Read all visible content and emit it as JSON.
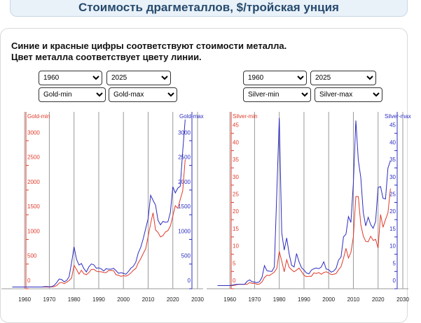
{
  "header": {
    "title": "Стоимость драгметаллов, $/тройская унция"
  },
  "note": [
    "Синие и красные цифры соответствуют стоимости металла.",
    "Цвет металла соответствует цвету линии."
  ],
  "selectors": [
    [
      "1960",
      "2025",
      "Gold-min",
      "Gold-max"
    ],
    [
      "1960",
      "2025",
      "Silver-min",
      "Silver-max"
    ]
  ],
  "chart_data": [
    {
      "type": "line",
      "x": [
        1955,
        1956,
        1957,
        1958,
        1959,
        1960,
        1961,
        1962,
        1963,
        1964,
        1965,
        1966,
        1967,
        1968,
        1969,
        1970,
        1971,
        1972,
        1973,
        1974,
        1975,
        1976,
        1977,
        1978,
        1979,
        1980,
        1981,
        1982,
        1983,
        1984,
        1985,
        1986,
        1987,
        1988,
        1989,
        1990,
        1991,
        1992,
        1993,
        1994,
        1995,
        1996,
        1997,
        1998,
        1999,
        2000,
        2001,
        2002,
        2003,
        2004,
        2005,
        2006,
        2007,
        2008,
        2009,
        2010,
        2011,
        2012,
        2013,
        2014,
        2015,
        2016,
        2017,
        2018,
        2019,
        2020,
        2021,
        2022,
        2023,
        2024,
        2025
      ],
      "series": [
        {
          "name": "Gold-min",
          "color": "#e03a2a",
          "values": [
            35,
            35,
            35,
            35,
            35,
            35,
            35,
            35,
            35,
            35,
            35,
            35,
            35,
            35,
            35,
            35,
            37,
            44,
            64,
            116,
            128,
            104,
            130,
            166,
            216,
            474,
            391,
            297,
            374,
            303,
            285,
            326,
            390,
            395,
            355,
            346,
            344,
            330,
            326,
            370,
            372,
            367,
            283,
            273,
            252,
            263,
            256,
            278,
            320,
            375,
            411,
            524,
            608,
            712,
            810,
            1058,
            1319,
            1540,
            1192,
            1142,
            1049,
            1077,
            1151,
            1178,
            1270,
            1474,
            1684,
            1629,
            1811,
            1985,
            2620
          ]
        },
        {
          "name": "Gold-max",
          "color": "#2c2cc0",
          "axis": "y2",
          "values": [
            35,
            35,
            35,
            35,
            35,
            35,
            35,
            35,
            35,
            35,
            35,
            35,
            35,
            43,
            44,
            39,
            44,
            70,
            127,
            198,
            186,
            140,
            168,
            243,
            524,
            850,
            599,
            481,
            510,
            406,
            340,
            442,
            502,
            485,
            417,
            424,
            403,
            360,
            406,
            396,
            396,
            415,
            367,
            313,
            326,
            313,
            293,
            349,
            416,
            454,
            537,
            725,
            841,
            1011,
            1218,
            1421,
            1895,
            1791,
            1694,
            1385,
            1296,
            1366,
            1346,
            1355,
            1546,
            2067,
            1943,
            2039,
            2078,
            2790,
            3430
          ]
        }
      ],
      "xlim": [
        1954,
        2030
      ],
      "xticks": [
        1960,
        1970,
        1980,
        1990,
        2000,
        2010,
        2020,
        2030
      ],
      "ylim": [
        0,
        3500
      ],
      "yticks": [
        0,
        500,
        1000,
        1500,
        2000,
        2500,
        3000
      ],
      "y2lim": [
        0,
        3500
      ],
      "y2ticks": [
        0,
        500,
        1000,
        1500,
        2000,
        2500,
        3000
      ],
      "grid": true
    },
    {
      "type": "line",
      "x": [
        1955,
        1956,
        1957,
        1958,
        1959,
        1960,
        1961,
        1962,
        1963,
        1964,
        1965,
        1966,
        1967,
        1968,
        1969,
        1970,
        1971,
        1972,
        1973,
        1974,
        1975,
        1976,
        1977,
        1978,
        1979,
        1980,
        1981,
        1982,
        1983,
        1984,
        1985,
        1986,
        1987,
        1988,
        1989,
        1990,
        1991,
        1992,
        1993,
        1994,
        1995,
        1996,
        1997,
        1998,
        1999,
        2000,
        2001,
        2002,
        2003,
        2004,
        2005,
        2006,
        2007,
        2008,
        2009,
        2010,
        2011,
        2012,
        2013,
        2014,
        2015,
        2016,
        2017,
        2018,
        2019,
        2020,
        2021,
        2022,
        2023,
        2024,
        2025
      ],
      "series": [
        {
          "name": "Silver-min",
          "color": "#e03a2a",
          "values": [
            0.9,
            0.9,
            0.9,
            0.9,
            0.9,
            0.9,
            0.91,
            1.0,
            1.22,
            1.29,
            1.29,
            1.29,
            1.29,
            1.81,
            1.54,
            1.57,
            1.29,
            1.39,
            1.96,
            3.27,
            3.91,
            3.83,
            4.3,
            4.82,
            5.91,
            10.8,
            8.0,
            4.9,
            8.4,
            6.2,
            5.5,
            4.9,
            5.4,
            6.0,
            5.0,
            3.9,
            3.5,
            3.6,
            3.6,
            4.6,
            4.4,
            4.7,
            4.2,
            4.7,
            4.9,
            4.6,
            4.1,
            4.2,
            4.4,
            5.5,
            6.4,
            8.8,
            11.7,
            8.9,
            10.5,
            15.1,
            26.7,
            26.7,
            18.6,
            15.3,
            13.7,
            13.6,
            15.2,
            14.0,
            14.3,
            11.8,
            21.5,
            17.8,
            20.0,
            22.0,
            29
          ]
        },
        {
          "name": "Silver-max",
          "color": "#2c2cc0",
          "axis": "y2",
          "values": [
            0.91,
            0.91,
            0.91,
            0.91,
            0.91,
            0.91,
            1.04,
            1.22,
            1.29,
            1.29,
            1.29,
            1.29,
            2.17,
            2.56,
            2.03,
            1.94,
            1.75,
            2.05,
            3.28,
            6.7,
            5.22,
            5.09,
            4.99,
            6.28,
            28,
            49.45,
            16.2,
            11.2,
            14.7,
            10.1,
            6.8,
            6.3,
            10.2,
            7.8,
            6.1,
            5.4,
            4.6,
            4.3,
            5.4,
            5.8,
            6.0,
            5.8,
            6.3,
            7.8,
            5.7,
            5.5,
            4.8,
            5.1,
            5.9,
            8.3,
            9.2,
            15.0,
            15.8,
            20.9,
            19.2,
            30.7,
            48.7,
            37.2,
            32.2,
            22.1,
            18.2,
            20.7,
            18.6,
            17.5,
            19.5,
            29.3,
            29.6,
            26.2,
            26.0,
            35.0,
            37
          ]
        }
      ],
      "xlim": [
        1954,
        2030
      ],
      "xticks": [
        1960,
        1970,
        1980,
        1990,
        2000,
        2010,
        2020,
        2030
      ],
      "ylim": [
        0,
        50
      ],
      "yticks": [
        0,
        5,
        10,
        15,
        20,
        25,
        30,
        35,
        40,
        45
      ],
      "y2lim": [
        0,
        50
      ],
      "y2ticks": [
        0,
        5,
        10,
        15,
        20,
        25,
        30,
        35,
        40,
        45
      ],
      "grid": true
    }
  ]
}
